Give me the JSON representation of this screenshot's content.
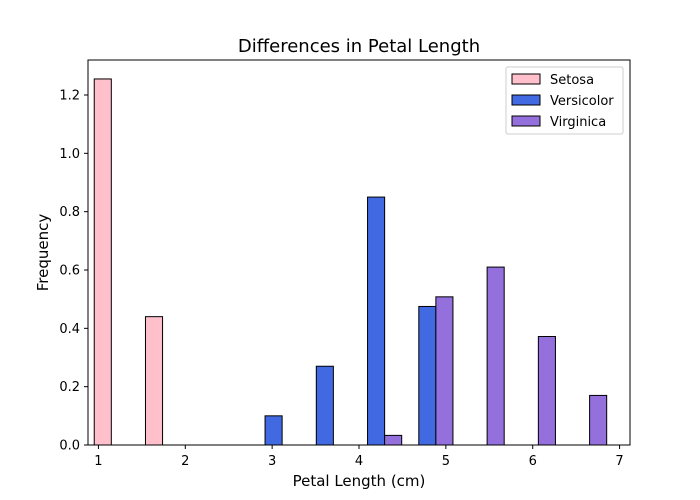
{
  "chart_data": {
    "type": "bar",
    "title": "Differences in Petal Length",
    "xlabel": "Petal Length (cm)",
    "ylabel": "Frequency",
    "xlim": [
      0.88,
      7.12
    ],
    "ylim": [
      0,
      1.32
    ],
    "xticks": [
      "1",
      "2",
      "3",
      "4",
      "5",
      "6",
      "7"
    ],
    "yticks": [
      "0.0",
      "0.2",
      "0.4",
      "0.6",
      "0.8",
      "1.0",
      "1.2"
    ],
    "grid": false,
    "legend_position": "top-right",
    "bin_width": 0.1967,
    "series": [
      {
        "name": "Setosa",
        "color": "#ffc0cb",
        "bars": [
          {
            "x": 1.05,
            "value": 1.255
          },
          {
            "x": 1.64,
            "value": 0.44
          },
          {
            "x": 2.23,
            "value": 0
          },
          {
            "x": 2.82,
            "value": 0
          },
          {
            "x": 3.41,
            "value": 0
          },
          {
            "x": 4.0,
            "value": 0
          },
          {
            "x": 4.59,
            "value": 0
          },
          {
            "x": 5.18,
            "value": 0
          },
          {
            "x": 5.77,
            "value": 0
          },
          {
            "x": 6.36,
            "value": 0
          }
        ]
      },
      {
        "name": "Versicolor",
        "color": "#4169e1",
        "bars": [
          {
            "x": 1.2467,
            "value": 0
          },
          {
            "x": 1.8367,
            "value": 0
          },
          {
            "x": 2.4267,
            "value": 0
          },
          {
            "x": 3.0167,
            "value": 0.1
          },
          {
            "x": 3.6067,
            "value": 0.27
          },
          {
            "x": 4.1967,
            "value": 0.85
          },
          {
            "x": 4.7867,
            "value": 0.475
          },
          {
            "x": 5.3767,
            "value": 0
          },
          {
            "x": 5.9667,
            "value": 0
          },
          {
            "x": 6.5567,
            "value": 0
          }
        ]
      },
      {
        "name": "Virginica",
        "color": "#9370db",
        "bars": [
          {
            "x": 1.4433,
            "value": 0
          },
          {
            "x": 2.0333,
            "value": 0
          },
          {
            "x": 2.6233,
            "value": 0
          },
          {
            "x": 3.2133,
            "value": 0
          },
          {
            "x": 3.8033,
            "value": 0
          },
          {
            "x": 4.3933,
            "value": 0.033
          },
          {
            "x": 4.9833,
            "value": 0.508
          },
          {
            "x": 5.5733,
            "value": 0.61
          },
          {
            "x": 6.1633,
            "value": 0.372
          },
          {
            "x": 6.7533,
            "value": 0.17
          }
        ]
      }
    ]
  }
}
